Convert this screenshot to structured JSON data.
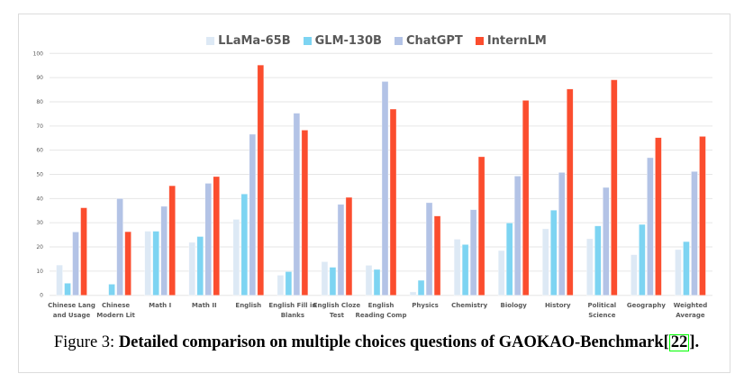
{
  "chart_data": {
    "type": "bar",
    "title": "",
    "xlabel": "",
    "ylabel": "",
    "ylim": [
      0,
      100
    ],
    "yticks": [
      0,
      10,
      20,
      30,
      40,
      50,
      60,
      70,
      80,
      90,
      100
    ],
    "grid": true,
    "legend_position": "top-center",
    "categories": [
      [
        "Chinese Lang",
        "and Usage"
      ],
      [
        "Chinese",
        "Modern Lit"
      ],
      [
        "Math I"
      ],
      [
        "Math II"
      ],
      [
        "English"
      ],
      [
        "English Fill in",
        "Blanks"
      ],
      [
        "English Cloze",
        "Test"
      ],
      [
        "English",
        "Reading Comp"
      ],
      [
        "Physics"
      ],
      [
        "Chemistry"
      ],
      [
        "Biology"
      ],
      [
        "History"
      ],
      [
        "Political",
        "Science"
      ],
      [
        "Geography"
      ],
      [
        "Weighted",
        "Average"
      ]
    ],
    "series": [
      {
        "name": "LLaMa-65B",
        "color": "#dde9f5",
        "values": [
          12.5,
          0,
          26.5,
          21.9,
          31.4,
          8.3,
          13.9,
          12.4,
          1.4,
          23.2,
          18.5,
          27.5,
          23.4,
          16.8,
          18.9
        ]
      },
      {
        "name": "GLM-130B",
        "color": "#7dd4f2",
        "values": [
          5.0,
          4.6,
          26.5,
          24.3,
          41.9,
          9.8,
          11.6,
          10.7,
          6.2,
          21.0,
          29.9,
          35.2,
          28.7,
          29.3,
          22.2
        ]
      },
      {
        "name": "ChatGPT",
        "color": "#b3c3e6",
        "values": [
          26.2,
          40.0,
          36.8,
          46.3,
          66.6,
          75.3,
          37.6,
          88.4,
          38.3,
          35.4,
          49.3,
          50.8,
          44.6,
          56.9,
          51.2
        ]
      },
      {
        "name": "InternLM",
        "color": "#fb4d2e",
        "values": [
          36.2,
          26.3,
          45.3,
          49.1,
          95.2,
          68.3,
          40.5,
          77.0,
          32.8,
          57.3,
          80.6,
          85.3,
          89.1,
          65.2,
          65.7
        ]
      }
    ]
  },
  "caption": {
    "prefix": "Figure 3: ",
    "text": "Detailed comparison on multiple choices questions of GAOKAO-Benchmark[",
    "citation": "22",
    "suffix": "]."
  }
}
